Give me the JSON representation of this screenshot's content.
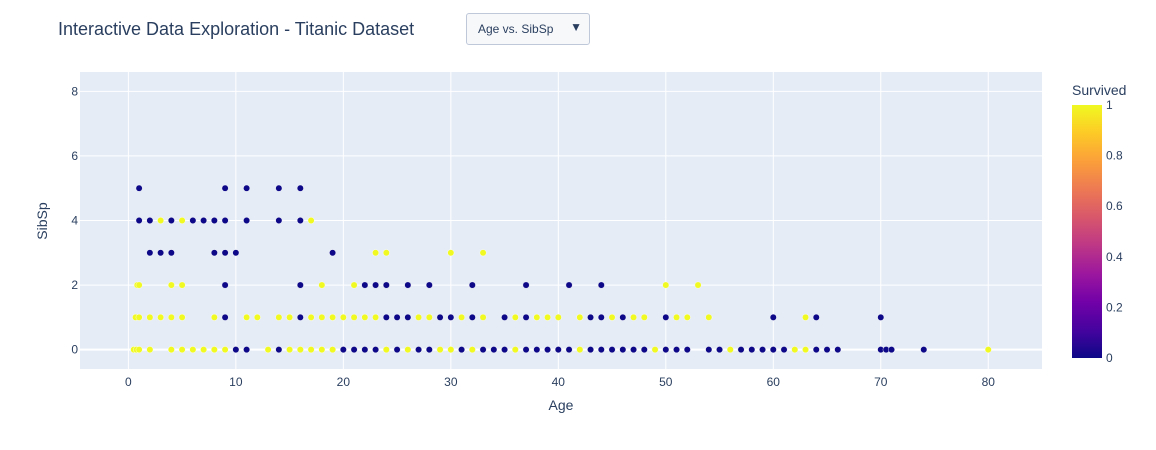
{
  "title": "Interactive Data Exploration - Titanic Dataset",
  "dropdown": {
    "selected": "Age vs. SibSp",
    "arrow": "▼"
  },
  "chart_data": {
    "type": "scatter",
    "xlabel": "Age",
    "ylabel": "SibSp",
    "xlim": [
      -4.5,
      85
    ],
    "ylim": [
      -0.6,
      8.6
    ],
    "xticks": [
      0,
      10,
      20,
      30,
      40,
      50,
      60,
      70,
      80
    ],
    "yticks": [
      0,
      2,
      4,
      6,
      8
    ],
    "grid": true,
    "colorbar": {
      "title": "Survived",
      "ticks": [
        0,
        0.2,
        0.4,
        0.6,
        0.8,
        1
      ],
      "colorscale": [
        "#0d0887",
        "#46039f",
        "#7201a8",
        "#9c179e",
        "#bd3786",
        "#d8576b",
        "#ed7953",
        "#fb9f3a",
        "#fdca26",
        "#f0f921"
      ]
    },
    "points_survived_0": [
      [
        1,
        5
      ],
      [
        1,
        4
      ],
      [
        2,
        4
      ],
      [
        2,
        3
      ],
      [
        3,
        3
      ],
      [
        4,
        4
      ],
      [
        4,
        3
      ],
      [
        6,
        4
      ],
      [
        7,
        4
      ],
      [
        8,
        4
      ],
      [
        8,
        3
      ],
      [
        9,
        5
      ],
      [
        9,
        4
      ],
      [
        9,
        3
      ],
      [
        9,
        2
      ],
      [
        10,
        3
      ],
      [
        11,
        5
      ],
      [
        11,
        4
      ],
      [
        14,
        5
      ],
      [
        14,
        4
      ],
      [
        16,
        5
      ],
      [
        16,
        4
      ],
      [
        16,
        2
      ],
      [
        19,
        3
      ],
      [
        22,
        2
      ],
      [
        23,
        2
      ],
      [
        24,
        2
      ],
      [
        26,
        2
      ],
      [
        28,
        2
      ],
      [
        32,
        2
      ],
      [
        37,
        2
      ],
      [
        41,
        2
      ],
      [
        44,
        2
      ],
      [
        60,
        1
      ],
      [
        64,
        1
      ],
      [
        70,
        1
      ],
      [
        2,
        1
      ],
      [
        4,
        1
      ],
      [
        9,
        1
      ],
      [
        14,
        1
      ],
      [
        16,
        1
      ],
      [
        18,
        1
      ],
      [
        21,
        1
      ],
      [
        24,
        1
      ],
      [
        25,
        1
      ],
      [
        26,
        1
      ],
      [
        27,
        1
      ],
      [
        28,
        1
      ],
      [
        29,
        1
      ],
      [
        30,
        1
      ],
      [
        31,
        1
      ],
      [
        32,
        1
      ],
      [
        33,
        1
      ],
      [
        35,
        1
      ],
      [
        37,
        1
      ],
      [
        40,
        1
      ],
      [
        43,
        1
      ],
      [
        44,
        1
      ],
      [
        46,
        1
      ],
      [
        47,
        1
      ],
      [
        48,
        1
      ],
      [
        50,
        1
      ],
      [
        51,
        1
      ],
      [
        54,
        1
      ],
      [
        10,
        0
      ],
      [
        11,
        0
      ],
      [
        14,
        0
      ],
      [
        16,
        0
      ],
      [
        17,
        0
      ],
      [
        19,
        0
      ],
      [
        20,
        0
      ],
      [
        21,
        0
      ],
      [
        22,
        0
      ],
      [
        23,
        0
      ],
      [
        24,
        0
      ],
      [
        25,
        0
      ],
      [
        26,
        0
      ],
      [
        27,
        0
      ],
      [
        28,
        0
      ],
      [
        29,
        0
      ],
      [
        30,
        0
      ],
      [
        31,
        0
      ],
      [
        32,
        0
      ],
      [
        33,
        0
      ],
      [
        34,
        0
      ],
      [
        35,
        0
      ],
      [
        36,
        0
      ],
      [
        37,
        0
      ],
      [
        38,
        0
      ],
      [
        39,
        0
      ],
      [
        40,
        0
      ],
      [
        41,
        0
      ],
      [
        42,
        0
      ],
      [
        43,
        0
      ],
      [
        44,
        0
      ],
      [
        45,
        0
      ],
      [
        46,
        0
      ],
      [
        47,
        0
      ],
      [
        48,
        0
      ],
      [
        49,
        0
      ],
      [
        50,
        0
      ],
      [
        51,
        0
      ],
      [
        52,
        0
      ],
      [
        54,
        0
      ],
      [
        55,
        0
      ],
      [
        56,
        0
      ],
      [
        57,
        0
      ],
      [
        58,
        0
      ],
      [
        59,
        0
      ],
      [
        60,
        0
      ],
      [
        61,
        0
      ],
      [
        62,
        0
      ],
      [
        64,
        0
      ],
      [
        65,
        0
      ],
      [
        66,
        0
      ],
      [
        70,
        0
      ],
      [
        70.5,
        0
      ],
      [
        71,
        0
      ],
      [
        74,
        0
      ]
    ],
    "points_survived_1": [
      [
        0.5,
        0
      ],
      [
        0.75,
        0
      ],
      [
        1,
        0
      ],
      [
        0.67,
        1
      ],
      [
        1,
        1
      ],
      [
        0.83,
        2
      ],
      [
        1,
        2
      ],
      [
        2,
        0
      ],
      [
        2,
        1
      ],
      [
        3,
        4
      ],
      [
        3,
        1
      ],
      [
        4,
        0
      ],
      [
        4,
        1
      ],
      [
        4,
        2
      ],
      [
        5,
        4
      ],
      [
        5,
        2
      ],
      [
        5,
        1
      ],
      [
        5,
        0
      ],
      [
        6,
        0
      ],
      [
        7,
        0
      ],
      [
        8,
        1
      ],
      [
        8,
        0
      ],
      [
        9,
        0
      ],
      [
        11,
        1
      ],
      [
        12,
        1
      ],
      [
        13,
        0
      ],
      [
        14,
        1
      ],
      [
        15,
        1
      ],
      [
        15,
        0
      ],
      [
        16,
        0
      ],
      [
        17,
        4
      ],
      [
        17,
        1
      ],
      [
        17,
        0
      ],
      [
        18,
        2
      ],
      [
        18,
        1
      ],
      [
        18,
        0
      ],
      [
        19,
        1
      ],
      [
        19,
        0
      ],
      [
        20,
        1
      ],
      [
        21,
        2
      ],
      [
        21,
        1
      ],
      [
        22,
        1
      ],
      [
        23,
        3
      ],
      [
        23,
        1
      ],
      [
        24,
        3
      ],
      [
        24,
        0
      ],
      [
        26,
        0
      ],
      [
        27,
        1
      ],
      [
        28,
        1
      ],
      [
        29,
        0
      ],
      [
        30,
        3
      ],
      [
        30,
        0
      ],
      [
        31,
        1
      ],
      [
        32,
        0
      ],
      [
        33,
        3
      ],
      [
        33,
        1
      ],
      [
        36,
        0
      ],
      [
        36,
        1
      ],
      [
        38,
        1
      ],
      [
        39,
        1
      ],
      [
        40,
        1
      ],
      [
        42,
        1
      ],
      [
        42,
        0
      ],
      [
        45,
        1
      ],
      [
        47,
        1
      ],
      [
        48,
        1
      ],
      [
        49,
        0
      ],
      [
        50,
        2
      ],
      [
        51,
        1
      ],
      [
        52,
        1
      ],
      [
        53,
        2
      ],
      [
        54,
        1
      ],
      [
        56,
        0
      ],
      [
        62,
        0
      ],
      [
        63,
        1
      ],
      [
        63,
        0
      ],
      [
        80,
        0
      ]
    ]
  }
}
